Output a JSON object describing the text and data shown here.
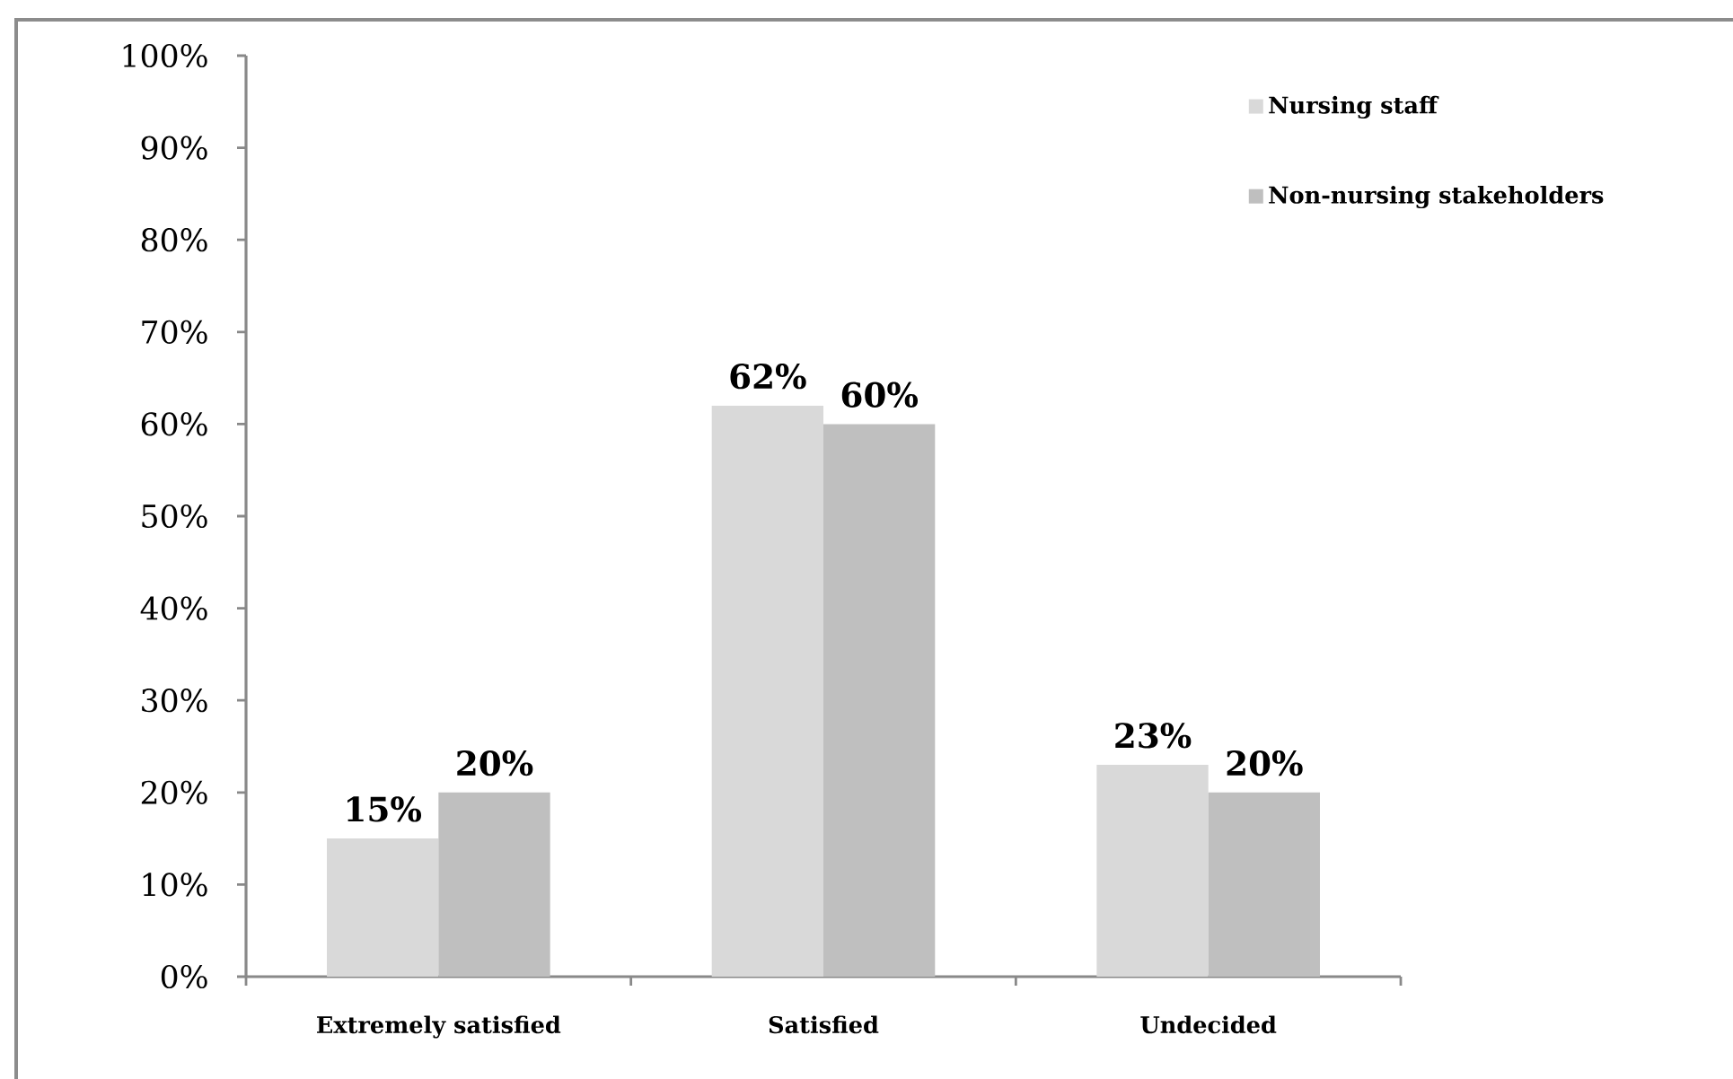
{
  "chart_data": {
    "type": "bar",
    "categories": [
      "Extremely satisfied",
      "Satisfied",
      "Undecided"
    ],
    "series": [
      {
        "name": "Nursing staff",
        "color": "#d9d9d9",
        "values": [
          15,
          62,
          23
        ],
        "value_labels": [
          "15%",
          "62%",
          "23%"
        ]
      },
      {
        "name": "Non-nursing stakeholders",
        "color": "#bfbfbf",
        "values": [
          20,
          60,
          20
        ],
        "value_labels": [
          "20%",
          "60%",
          "20%"
        ]
      }
    ],
    "ylim": [
      0,
      100
    ],
    "yticks": [
      {
        "value": 0,
        "label": "0%"
      },
      {
        "value": 10,
        "label": "10%"
      },
      {
        "value": 20,
        "label": "20%"
      },
      {
        "value": 30,
        "label": "30%"
      },
      {
        "value": 40,
        "label": "40%"
      },
      {
        "value": 50,
        "label": "50%"
      },
      {
        "value": 60,
        "label": "60%"
      },
      {
        "value": 70,
        "label": "70%"
      },
      {
        "value": 80,
        "label": "80%"
      },
      {
        "value": 90,
        "label": "90%"
      },
      {
        "value": 100,
        "label": "100%"
      }
    ],
    "legend": "top right"
  }
}
